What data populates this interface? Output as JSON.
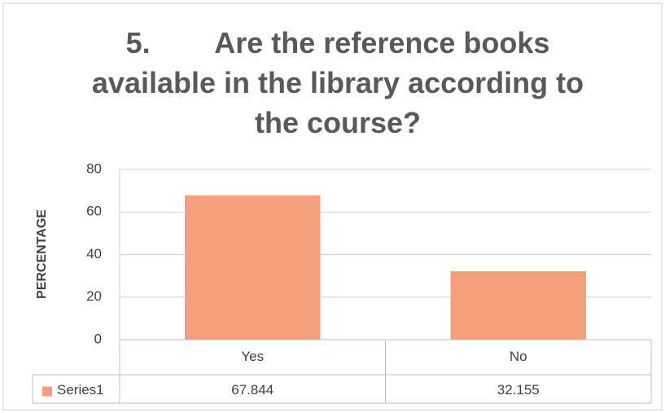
{
  "chart_data": {
    "type": "bar",
    "title": "5.        Are the reference books available in the library according to the course?",
    "y_label": "PERCENTAGE",
    "categories": [
      "Yes",
      "No"
    ],
    "series": [
      {
        "name": "Series1",
        "color": "#f5a07a",
        "values": [
          67.844,
          32.155
        ]
      }
    ],
    "ylim": [
      0,
      80
    ],
    "yticks": [
      0,
      20,
      40,
      60,
      80
    ],
    "grid": true,
    "data_table": true
  }
}
